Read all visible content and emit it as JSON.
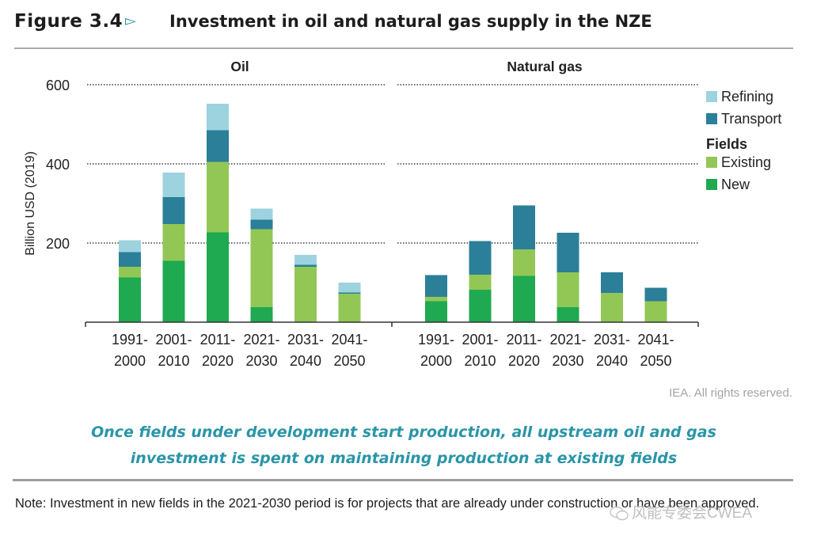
{
  "figure": {
    "label": "Figure 3.4",
    "arrow_icon": "triangle-right-outline",
    "title": "Investment in oil and natural gas supply in the NZE"
  },
  "credit": "IEA. All rights reserved.",
  "caption": {
    "line1": "Once fields under development start production, all upstream oil and gas",
    "line2": "investment is spent on maintaining production at existing fields"
  },
  "note": "Note: Investment in new fields in the 2021-2030 period is for projects that are already under construction or have been approved.",
  "watermark": "风能专委会CWEA",
  "colors": {
    "refining": "#9dd3df",
    "transport": "#2b7f98",
    "existing": "#92c756",
    "new": "#1fa950",
    "axis": "#333333",
    "grid": "#6e6e6e"
  },
  "chart_data": {
    "type": "bar",
    "stacked": true,
    "ylabel": "Billion USD (2019)",
    "ylim": [
      0,
      600
    ],
    "yticks": [
      200,
      400,
      600
    ],
    "grid": "dotted horizontal at 200, 400, 600",
    "categories": [
      "1991-2000",
      "2001-2010",
      "2011-2020",
      "2021-2030",
      "2031-2040",
      "2041-2050"
    ],
    "category_lines": [
      [
        "1991-",
        "2000"
      ],
      [
        "2001-",
        "2010"
      ],
      [
        "2011-",
        "2020"
      ],
      [
        "2021-",
        "2030"
      ],
      [
        "2031-",
        "2040"
      ],
      [
        "2041-",
        "2050"
      ]
    ],
    "legend": {
      "placement": "right",
      "items": [
        {
          "key": "refining",
          "label": "Refining"
        },
        {
          "key": "transport",
          "label": "Transport"
        }
      ],
      "group_title": "Fields",
      "group_items": [
        {
          "key": "existing",
          "label": "Existing"
        },
        {
          "key": "new",
          "label": "New"
        }
      ]
    },
    "panels": [
      {
        "title": "Oil",
        "series": [
          {
            "name": "New",
            "key": "new",
            "values": [
              113,
              155,
              227,
              38,
              0,
              0
            ]
          },
          {
            "name": "Existing",
            "key": "existing",
            "values": [
              27,
              93,
              178,
              197,
              140,
              72
            ]
          },
          {
            "name": "Transport",
            "key": "transport",
            "values": [
              37,
              68,
              80,
              24,
              5,
              3
            ]
          },
          {
            "name": "Refining",
            "key": "refining",
            "values": [
              30,
              62,
              67,
              28,
              25,
              25
            ]
          }
        ]
      },
      {
        "title": "Natural gas",
        "series": [
          {
            "name": "New",
            "key": "new",
            "values": [
              53,
              82,
              117,
              38,
              0,
              0
            ]
          },
          {
            "name": "Existing",
            "key": "existing",
            "values": [
              11,
              38,
              67,
              88,
              74,
              53
            ]
          },
          {
            "name": "Transport",
            "key": "transport",
            "values": [
              55,
              85,
              111,
              100,
              52,
              34
            ]
          },
          {
            "name": "Refining",
            "key": "refining",
            "values": [
              0,
              0,
              0,
              0,
              0,
              0
            ]
          }
        ]
      }
    ]
  }
}
